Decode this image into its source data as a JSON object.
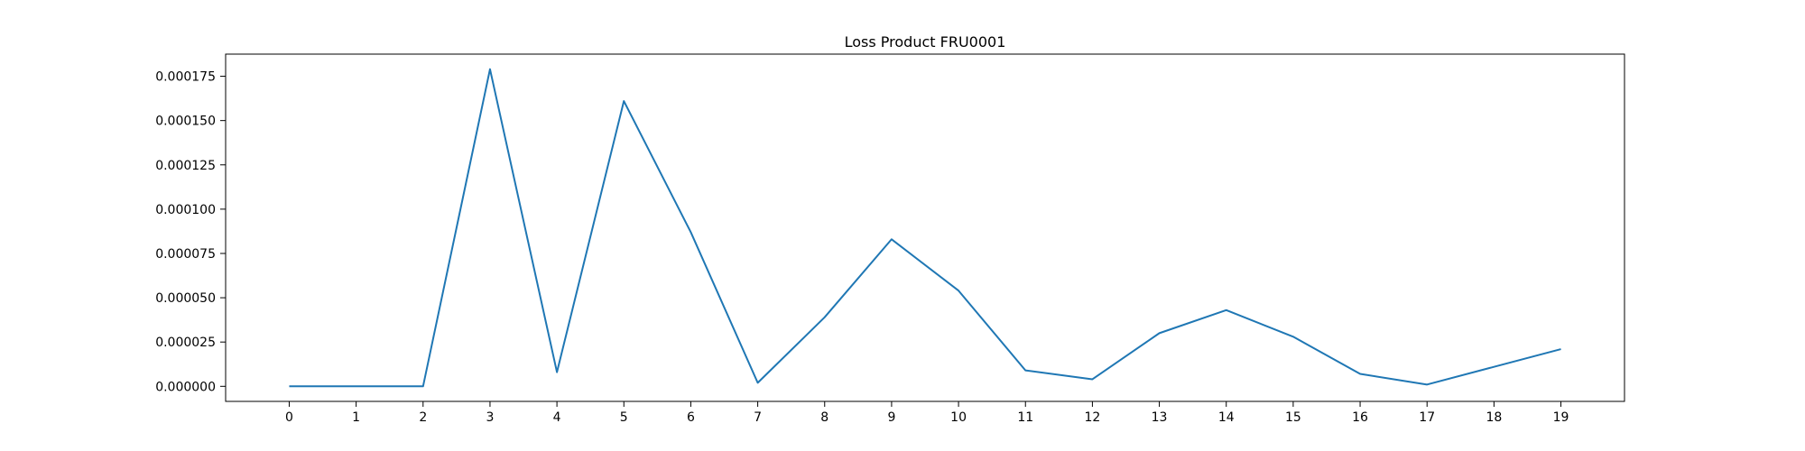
{
  "chart_data": {
    "type": "line",
    "title": "Loss Product FRU0001",
    "xlabel": "",
    "ylabel": "",
    "x": [
      0,
      1,
      2,
      3,
      4,
      5,
      6,
      7,
      8,
      9,
      10,
      11,
      12,
      13,
      14,
      15,
      16,
      17,
      18,
      19
    ],
    "x_ticks": [
      "0",
      "1",
      "2",
      "3",
      "4",
      "5",
      "6",
      "7",
      "8",
      "9",
      "10",
      "11",
      "12",
      "13",
      "14",
      "15",
      "16",
      "17",
      "18",
      "19"
    ],
    "y_ticks": [
      0.0,
      2.5e-05,
      5e-05,
      7.5e-05,
      0.0001,
      0.000125,
      0.00015,
      0.000175
    ],
    "y_tick_labels": [
      "0.000000",
      "0.000025",
      "0.000050",
      "0.000075",
      "0.000100",
      "0.000125",
      "0.000150",
      "0.000175"
    ],
    "xlim": [
      -0.95,
      19.95
    ],
    "ylim": [
      -8.5e-06,
      0.0001875
    ],
    "grid": false,
    "legend": "none",
    "series": [
      {
        "color": "#1f77b4",
        "values": [
          0.0,
          0.0,
          0.0,
          0.000179,
          8e-06,
          0.000161,
          8.7e-05,
          2e-06,
          3.9e-05,
          8.3e-05,
          5.4e-05,
          9e-06,
          4e-06,
          3e-05,
          4.3e-05,
          2.8e-05,
          7e-06,
          1e-06,
          1.1e-05,
          2.1e-05
        ]
      }
    ]
  }
}
